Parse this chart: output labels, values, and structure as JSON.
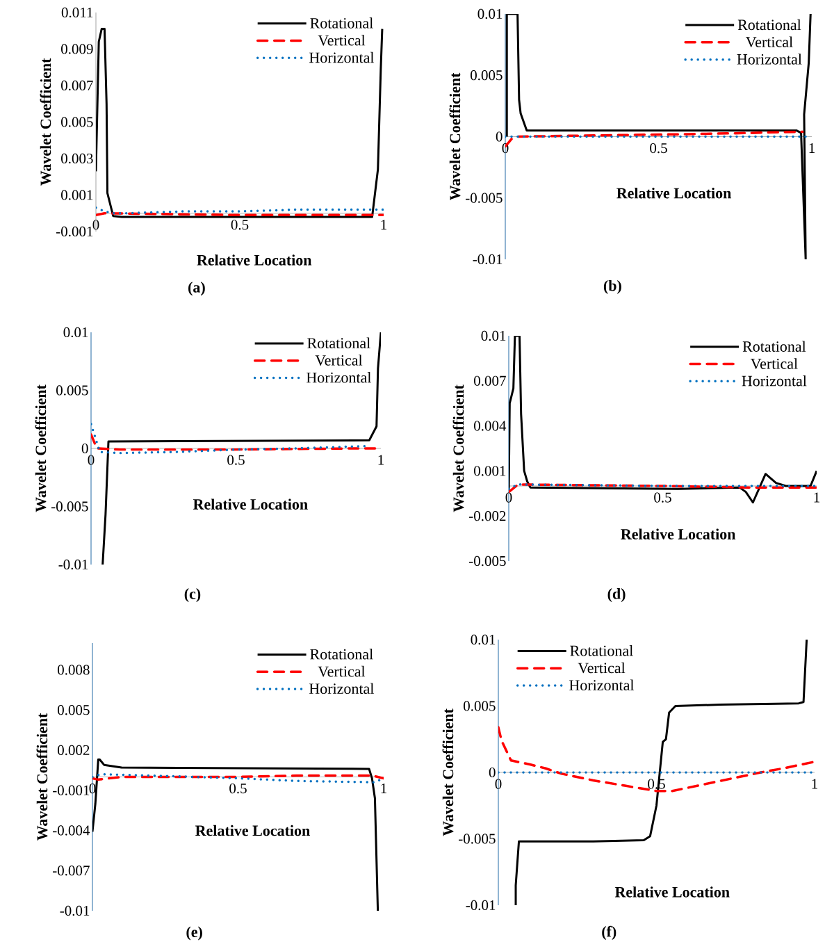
{
  "chart_data": [
    {
      "type": "line",
      "title": "(a)",
      "xlabel": "Relative Location",
      "ylabel": "Wavelet Coefficient",
      "xlim": [
        0,
        1
      ],
      "xticks": [
        0,
        0.5,
        1
      ],
      "ylim": [
        -0.001,
        0.011
      ],
      "yticks": [
        -0.001,
        0.001,
        0.003,
        0.005,
        0.007,
        0.009,
        0.011
      ],
      "legend": "top right",
      "series": [
        {
          "name": "Rotational",
          "color": "#000000",
          "line_style": "solid",
          "x": [
            0,
            0.01,
            0.02,
            0.03,
            0.037,
            0.04,
            0.06,
            0.09,
            0.96,
            0.98,
            0.99,
            0.995
          ],
          "values": [
            0.0023,
            0.0094,
            0.0101,
            0.0101,
            0.006,
            0.0011,
            -0.00015,
            -0.0002,
            -0.0002,
            0.0024,
            0.0079,
            0.0101
          ]
        },
        {
          "name": "Vertical",
          "color": "#ff0000",
          "line_style": "dashed",
          "x": [
            0,
            0.03,
            0.5,
            0.95,
            1
          ],
          "values": [
            -0.0001,
            0,
            -0.0001,
            -0.0001,
            -0.0001
          ]
        },
        {
          "name": "Horizontal",
          "color": "#0070c0",
          "line_style": "dotted",
          "x": [
            0,
            0.03,
            0.06,
            0.1,
            0.3,
            0.5,
            0.7,
            0.9,
            1
          ],
          "values": [
            0.0003,
            0.0001,
            0,
            0,
            0.0001,
            0.0001,
            0.0002,
            0.0002,
            0.0002
          ]
        }
      ]
    },
    {
      "type": "line",
      "title": "(b)",
      "xlabel": "Relative Location",
      "ylabel": "Wavelet Coefficient",
      "xlim": [
        0,
        1
      ],
      "xticks": [
        0,
        0.5,
        1
      ],
      "ylim": [
        -0.01,
        0.01
      ],
      "yticks": [
        -0.01,
        -0.005,
        0,
        0.005,
        0.01
      ],
      "legend": "top right",
      "series": [
        {
          "name": "Rotational",
          "color": "#000000",
          "line_style": "solid",
          "x": [
            0.005,
            0.005,
            0.04,
            0.045,
            0.05,
            0.07,
            0.95,
            0.965,
            0.98,
            0.975,
            0.99,
            0.996
          ],
          "values": [
            0,
            0.01,
            0.01,
            0.003,
            0.0019,
            0.0005,
            0.0005,
            0.0003,
            -0.01,
            0.0018,
            0.006,
            0.01
          ]
        },
        {
          "name": "Vertical",
          "color": "#ff0000",
          "line_style": "dashed",
          "x": [
            0,
            0.02,
            0.04,
            0.3,
            0.6,
            0.8,
            0.97
          ],
          "values": [
            -0.0008,
            -0.0002,
            0,
            0.0001,
            0.0002,
            0.0003,
            0.0004
          ]
        },
        {
          "name": "Horizontal",
          "color": "#0070c0",
          "line_style": "dotted",
          "x": [
            0,
            0.5,
            1
          ],
          "values": [
            0,
            0,
            0
          ]
        }
      ]
    },
    {
      "type": "line",
      "title": "(c)",
      "xlabel": "Relative Location",
      "ylabel": "Wavelet Coefficient",
      "xlim": [
        0,
        1
      ],
      "xticks": [
        0,
        0.5,
        1
      ],
      "ylim": [
        -0.01,
        0.01
      ],
      "yticks": [
        -0.01,
        -0.005,
        0,
        0.005,
        0.01
      ],
      "legend": "top right",
      "series": [
        {
          "name": "Rotational",
          "color": "#000000",
          "line_style": "solid",
          "x": [
            0.04,
            0.05,
            0.06,
            0.96,
            0.985,
            0.99,
            1
          ],
          "values": [
            -0.01,
            -0.0057,
            0.0006,
            0.0007,
            0.0019,
            0.0069,
            0.01
          ]
        },
        {
          "name": "Vertical",
          "color": "#ff0000",
          "line_style": "dashed",
          "x": [
            0,
            0.02,
            0.1,
            0.5,
            0.9,
            1
          ],
          "values": [
            0.0012,
            0,
            -0.0001,
            -0.0001,
            0,
            0
          ]
        },
        {
          "name": "Horizontal",
          "color": "#0070c0",
          "line_style": "dotted",
          "x": [
            0,
            0.01,
            0.02,
            0.03,
            0.1,
            0.3,
            0.5,
            0.7,
            0.95
          ],
          "values": [
            0.0021,
            0.0013,
            0.0005,
            -0.0003,
            -0.0004,
            -0.0003,
            -0.0001,
            0,
            0.0002
          ]
        }
      ]
    },
    {
      "type": "line",
      "title": "(d)",
      "xlabel": "Relative Location",
      "ylabel": "Wavelet Coefficient",
      "xlim": [
        0,
        1
      ],
      "xticks": [
        0,
        0.5,
        1
      ],
      "ylim": [
        -0.005,
        0.01
      ],
      "yticks": [
        -0.005,
        -0.002,
        0.001,
        0.004,
        0.007,
        0.01
      ],
      "legend": "top right",
      "series": [
        {
          "name": "Rotational",
          "color": "#000000",
          "line_style": "solid",
          "x": [
            0,
            0.003,
            0.015,
            0.02,
            0.035,
            0.04,
            0.05,
            0.06,
            0.07,
            0.55,
            0.75,
            0.77,
            0.793,
            0.834,
            0.868,
            0.9,
            0.98,
            1
          ],
          "values": [
            -0.0003,
            0.0055,
            0.0065,
            0.01,
            0.01,
            0.0048,
            0.001,
            0.0003,
            -0.0001,
            -0.0002,
            -0.0001,
            -0.0004,
            -0.0011,
            0.0008,
            0.0002,
            0,
            0,
            0.001
          ]
        },
        {
          "name": "Vertical",
          "color": "#ff0000",
          "line_style": "dashed",
          "x": [
            0,
            0.03,
            0.5,
            0.78,
            1
          ],
          "values": [
            -0.0004,
            0.0001,
            0,
            -0.0001,
            -0.0001
          ]
        },
        {
          "name": "Horizontal",
          "color": "#0070c0",
          "line_style": "dotted",
          "x": [
            0,
            0.03,
            0.5,
            1
          ],
          "values": [
            -0.0002,
            0.0001,
            0,
            0
          ]
        }
      ]
    },
    {
      "type": "line",
      "title": "(e)",
      "xlabel": "Relative Location",
      "ylabel": "Wavelet Coefficient",
      "xlim": [
        0,
        1
      ],
      "xticks": [
        0,
        0.5,
        1
      ],
      "ylim": [
        -0.01,
        0.01
      ],
      "yticks": [
        -0.01,
        -0.007,
        -0.004,
        -0.001,
        0.002,
        0.005,
        0.008
      ],
      "legend": "top right",
      "series": [
        {
          "name": "Rotational",
          "color": "#000000",
          "line_style": "solid",
          "x": [
            0,
            0.01,
            0.02,
            0.025,
            0.04,
            0.1,
            0.95,
            0.96,
            0.97,
            0.98
          ],
          "values": [
            -0.0041,
            -0.002,
            0.0013,
            0.0013,
            0.0009,
            0.0007,
            0.0006,
            -0.0001,
            -0.0016,
            -0.01
          ]
        },
        {
          "name": "Vertical",
          "color": "#ff0000",
          "line_style": "dashed",
          "x": [
            0,
            0.02,
            0.1,
            0.5,
            0.7,
            0.9,
            0.96,
            1
          ],
          "values": [
            -0.0001,
            -0.0002,
            0,
            0,
            0.0001,
            0.0001,
            0.0001,
            -0.0001
          ]
        },
        {
          "name": "Horizontal",
          "color": "#0070c0",
          "line_style": "dotted",
          "x": [
            0,
            0.03,
            0.2,
            0.5,
            0.7,
            0.97,
            1
          ],
          "values": [
            0,
            0.0002,
            0.0001,
            -0.0001,
            -0.0003,
            -0.0004,
            -0.0001
          ]
        }
      ]
    },
    {
      "type": "line",
      "title": "(f)",
      "xlabel": "Relative Location",
      "ylabel": "Wavelet Coefficient",
      "xlim": [
        0,
        1
      ],
      "xticks": [
        0,
        0.5,
        1
      ],
      "ylim": [
        -0.01,
        0.01
      ],
      "yticks": [
        -0.01,
        -0.005,
        0,
        0.005,
        0.01
      ],
      "legend": "top left",
      "series": [
        {
          "name": "Rotational",
          "color": "#000000",
          "line_style": "solid",
          "x": [
            0.055,
            0.055,
            0.065,
            0.3,
            0.46,
            0.48,
            0.5,
            0.52,
            0.53,
            0.54,
            0.56,
            0.7,
            0.95,
            0.965,
            0.975
          ],
          "values": [
            -0.01,
            -0.0085,
            -0.0052,
            -0.0052,
            -0.0051,
            -0.0048,
            -0.0025,
            0.0023,
            0.0025,
            0.0045,
            0.005,
            0.0051,
            0.0052,
            0.0053,
            0.01
          ]
        },
        {
          "name": "Vertical",
          "color": "#ff0000",
          "line_style": "dashed",
          "x": [
            0,
            0.01,
            0.04,
            0.1,
            0.15,
            0.2,
            0.3,
            0.4,
            0.5,
            0.55,
            0.65,
            0.75,
            0.83,
            0.9,
            1
          ],
          "values": [
            0.0034,
            0.0024,
            0.0009,
            0.0006,
            0.0003,
            -0.0001,
            -0.0006,
            -0.001,
            -0.0014,
            -0.0014,
            -0.0009,
            -0.0004,
            0,
            0.0003,
            0.0008
          ]
        },
        {
          "name": "Horizontal",
          "color": "#0070c0",
          "line_style": "dotted",
          "x": [
            0,
            0.5,
            1
          ],
          "values": [
            0,
            0,
            0
          ]
        }
      ]
    }
  ]
}
